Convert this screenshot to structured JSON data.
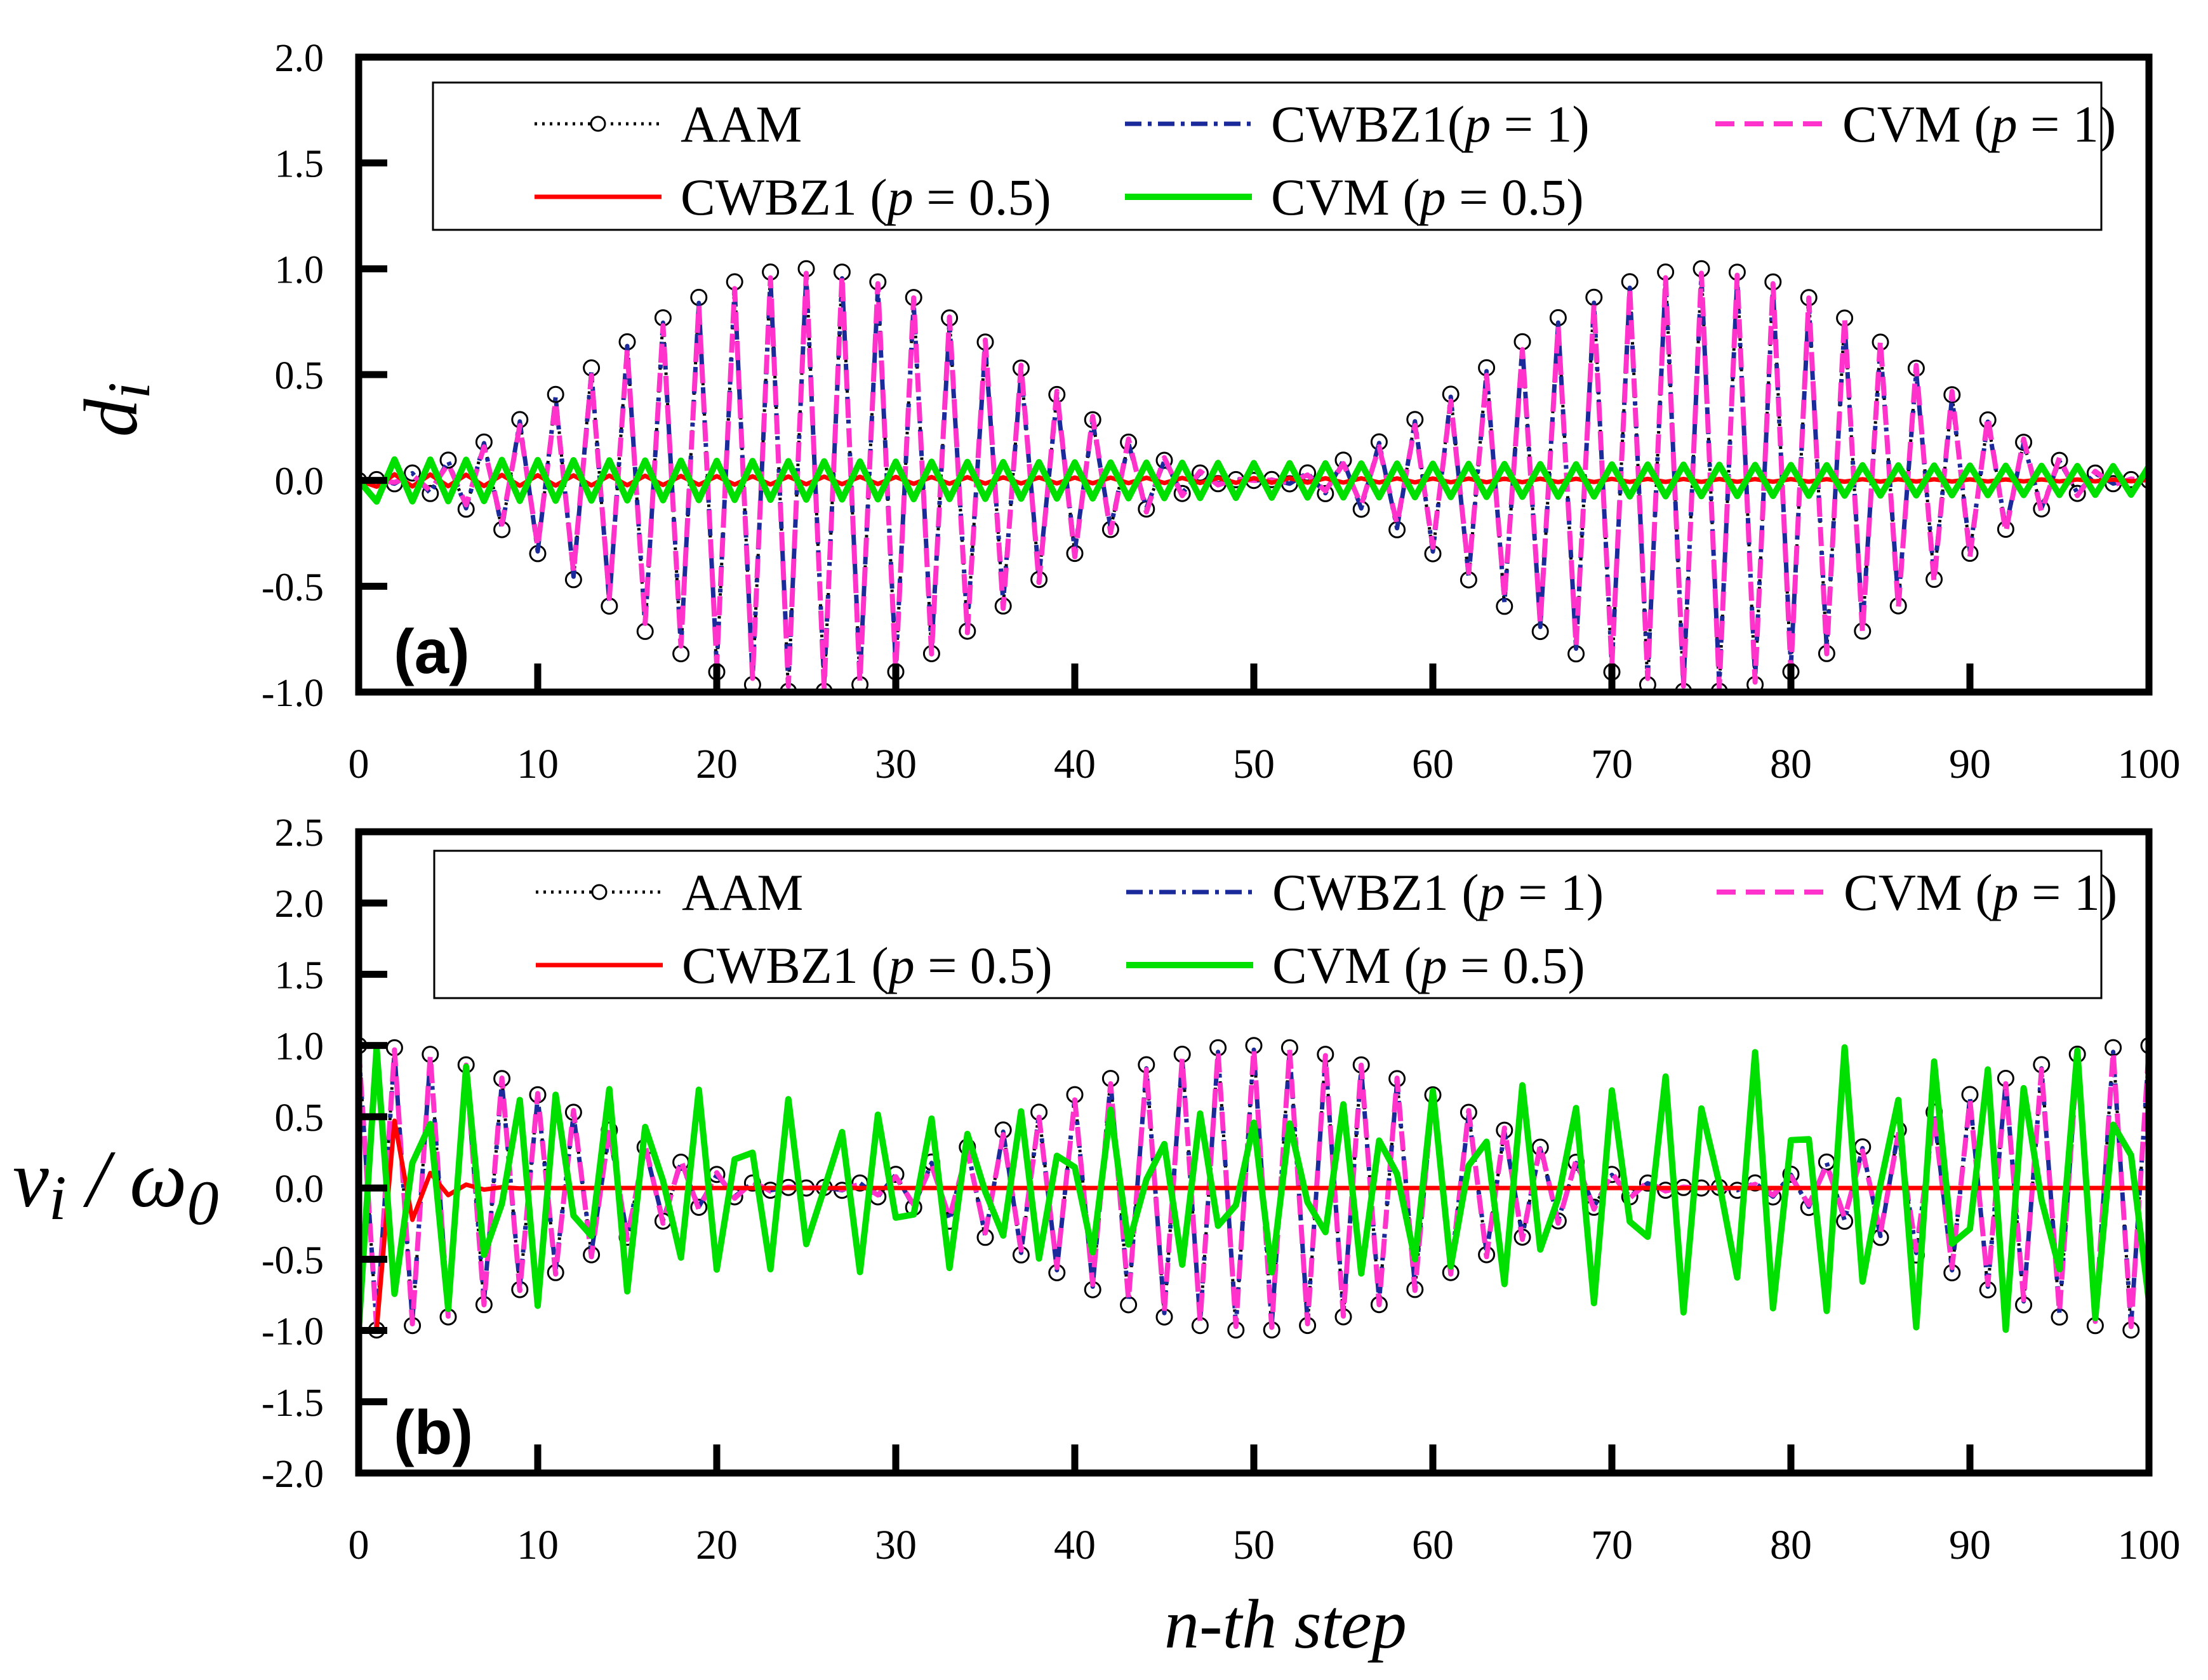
{
  "figure": {
    "xlabel": "n-th step"
  },
  "chart_data": [
    {
      "type": "line",
      "panel_label": "(a)",
      "ylabel_main": "d",
      "ylabel_sub": "i",
      "xlim": [
        0,
        100
      ],
      "ylim": [
        -1.0,
        2.0
      ],
      "xticks": [
        "0",
        "10",
        "20",
        "30",
        "40",
        "50",
        "60",
        "70",
        "80",
        "90",
        "100"
      ],
      "xtick_values": [
        0,
        10,
        20,
        30,
        40,
        50,
        60,
        70,
        80,
        90,
        100
      ],
      "yticks": [
        "-1.0",
        "-0.5",
        "0.0",
        "0.5",
        "1.0",
        "1.5",
        "2.0"
      ],
      "ytick_values": [
        -1.0,
        -0.5,
        0.0,
        0.5,
        1.0,
        1.5,
        2.0
      ],
      "legend_position": "top",
      "series": [
        {
          "name": "AAM",
          "label_prefix": "",
          "label_p": "",
          "label_suffix": "AAM",
          "style": "dotted-circle",
          "color": "#000000",
          "amplitude": 1.0,
          "decay": 0,
          "omega": 3.0787,
          "envelope_omega": 0.0628,
          "phase": 0,
          "kind": "beat",
          "markers": true
        },
        {
          "name": "CWBZ1(p = 1)",
          "label_prefix": "CWBZ1(",
          "label_p": "p",
          "label_suffix": " = 1)",
          "style": "dashdot",
          "color": "#1b2a9a",
          "amplitude": 0.97,
          "decay": 0,
          "omega": 3.0787,
          "envelope_omega": 0.0628,
          "phase": 0,
          "kind": "beat",
          "markers": false
        },
        {
          "name": "CVM (p = 1)",
          "label_prefix": "CVM (",
          "label_p": "p",
          "label_suffix": " = 1)",
          "style": "dashed",
          "color": "#ff33cc",
          "amplitude": 0.98,
          "decay": 0,
          "omega": 3.0787,
          "envelope_omega": 0.0628,
          "phase": 0.05,
          "kind": "beat",
          "markers": false
        },
        {
          "name": "CWBZ1 (p = 0.5)",
          "label_prefix": "CWBZ1 (",
          "label_p": "p",
          "label_suffix": " = 0.5)",
          "style": "solid",
          "color": "#ff0000",
          "amplitude": 0.03,
          "decay": 0.02,
          "omega": 3.0787,
          "envelope_omega": 0,
          "phase": 0,
          "kind": "decay",
          "markers": false
        },
        {
          "name": "CVM (p = 0.5)",
          "label_prefix": "CVM (",
          "label_p": "p",
          "label_suffix": " = 0.5)",
          "style": "solid-thick",
          "color": "#00e000",
          "amplitude": 0.1,
          "decay": 0.004,
          "omega": 2.85,
          "envelope_omega": 0,
          "phase": 0,
          "kind": "decay",
          "markers": false
        }
      ]
    },
    {
      "type": "line",
      "panel_label": "(b)",
      "ylabel_main": "v",
      "ylabel_sub": "i",
      "ylabel_mid": " / ω",
      "ylabel_sub2": "0",
      "xlim": [
        0,
        100
      ],
      "ylim": [
        -2.0,
        2.5
      ],
      "xticks": [
        "0",
        "10",
        "20",
        "30",
        "40",
        "50",
        "60",
        "70",
        "80",
        "90",
        "100"
      ],
      "xtick_values": [
        0,
        10,
        20,
        30,
        40,
        50,
        60,
        70,
        80,
        90,
        100
      ],
      "yticks": [
        "-2.0",
        "-1.5",
        "-1.0",
        "-0.5",
        "0.0",
        "0.5",
        "1.0",
        "1.5",
        "2.0",
        "2.5"
      ],
      "ytick_values": [
        -2.0,
        -1.5,
        -1.0,
        -0.5,
        0.0,
        0.5,
        1.0,
        1.5,
        2.0,
        2.5
      ],
      "legend_position": "top",
      "series": [
        {
          "name": "AAM",
          "label_prefix": "",
          "label_p": "",
          "label_suffix": "AAM",
          "style": "dotted-circle",
          "color": "#000000",
          "amplitude": 1.0,
          "decay": 0,
          "omega": 3.0787,
          "envelope_omega": 0.0628,
          "phase": 1.5708,
          "kind": "beat-cos",
          "markers": true
        },
        {
          "name": "CWBZ1 (p = 1)",
          "label_prefix": "CWBZ1 (",
          "label_p": "p",
          "label_suffix": " = 1)",
          "style": "dashdot",
          "color": "#1b2a9a",
          "amplitude": 0.97,
          "decay": 0,
          "omega": 3.0787,
          "envelope_omega": 0.0628,
          "phase": 1.5708,
          "kind": "beat-cos",
          "markers": false
        },
        {
          "name": "CVM (p = 1)",
          "label_prefix": "CVM (",
          "label_p": "p",
          "label_suffix": " = 1)",
          "style": "dashed",
          "color": "#ff33cc",
          "amplitude": 0.98,
          "decay": 0,
          "omega": 3.0787,
          "envelope_omega": 0.0628,
          "phase": 1.62,
          "kind": "beat-cos",
          "markers": false
        },
        {
          "name": "CWBZ1 (p = 0.5)",
          "label_prefix": "CWBZ1 (",
          "label_p": "p",
          "label_suffix": " = 0.5)",
          "style": "solid",
          "color": "#ff0000",
          "amplitude": 1.0,
          "decay": 0.75,
          "omega": 3.0787,
          "envelope_omega": 0,
          "phase": 0,
          "kind": "velocity-decay",
          "markers": false
        },
        {
          "name": "CVM (p = 0.5)",
          "label_prefix": "CVM (",
          "label_p": "p",
          "label_suffix": " = 0.5)",
          "style": "solid-thick",
          "color": "#00e000",
          "amplitude": 1.0,
          "decay": 0.0055,
          "omega": 2.45,
          "envelope_omega": 0,
          "phase": 0,
          "kind": "velocity-green",
          "markers": false
        }
      ]
    }
  ]
}
